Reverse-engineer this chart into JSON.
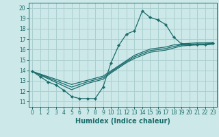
{
  "xlabel": "Humidex (Indice chaleur)",
  "ylabel": "",
  "xlim": [
    -0.5,
    23.5
  ],
  "ylim": [
    10.5,
    20.5
  ],
  "xticks": [
    0,
    1,
    2,
    3,
    4,
    5,
    6,
    7,
    8,
    9,
    10,
    11,
    12,
    13,
    14,
    15,
    16,
    17,
    18,
    19,
    20,
    21,
    22,
    23
  ],
  "yticks": [
    11,
    12,
    13,
    14,
    15,
    16,
    17,
    18,
    19,
    20
  ],
  "bg_color": "#cce8e8",
  "grid_color": "#aacfcf",
  "line_color": "#1a6b6b",
  "curves": [
    {
      "x": [
        0,
        1,
        2,
        3,
        4,
        5,
        6,
        7,
        8,
        9,
        10,
        11,
        12,
        13,
        14,
        15,
        16,
        17,
        18,
        19,
        20,
        21,
        22,
        23
      ],
      "y": [
        13.9,
        13.4,
        12.9,
        12.6,
        12.1,
        11.5,
        11.3,
        11.3,
        11.3,
        12.4,
        14.7,
        16.4,
        17.5,
        17.8,
        19.7,
        19.1,
        18.85,
        18.4,
        17.2,
        16.55,
        16.5,
        16.5,
        16.5,
        16.6
      ],
      "with_markers": true
    },
    {
      "x": [
        0,
        1,
        2,
        3,
        4,
        5,
        6,
        7,
        8,
        9,
        10,
        11,
        12,
        13,
        14,
        15,
        16,
        17,
        18,
        19,
        20,
        21,
        22,
        23
      ],
      "y": [
        13.9,
        13.65,
        13.4,
        13.15,
        12.9,
        12.65,
        12.85,
        13.05,
        13.25,
        13.45,
        13.95,
        14.45,
        14.95,
        15.45,
        15.75,
        16.05,
        16.15,
        16.25,
        16.45,
        16.55,
        16.6,
        16.65,
        16.65,
        16.7
      ],
      "with_markers": false
    },
    {
      "x": [
        0,
        1,
        2,
        3,
        4,
        5,
        6,
        7,
        8,
        9,
        10,
        11,
        12,
        13,
        14,
        15,
        16,
        17,
        18,
        19,
        20,
        21,
        22,
        23
      ],
      "y": [
        13.9,
        13.6,
        13.3,
        13.0,
        12.7,
        12.4,
        12.65,
        12.9,
        13.1,
        13.3,
        13.85,
        14.35,
        14.85,
        15.3,
        15.6,
        15.9,
        16.0,
        16.1,
        16.3,
        16.45,
        16.5,
        16.55,
        16.55,
        16.6
      ],
      "with_markers": false
    },
    {
      "x": [
        0,
        1,
        2,
        3,
        4,
        5,
        6,
        7,
        8,
        9,
        10,
        11,
        12,
        13,
        14,
        15,
        16,
        17,
        18,
        19,
        20,
        21,
        22,
        23
      ],
      "y": [
        13.9,
        13.55,
        13.2,
        12.85,
        12.5,
        12.15,
        12.45,
        12.75,
        12.95,
        13.15,
        13.75,
        14.25,
        14.75,
        15.15,
        15.45,
        15.75,
        15.85,
        15.95,
        16.15,
        16.35,
        16.4,
        16.45,
        16.45,
        16.5
      ],
      "with_markers": false
    }
  ],
  "tick_fontsize": 5.5,
  "xlabel_fontsize": 7,
  "xlabel_fontweight": "bold"
}
